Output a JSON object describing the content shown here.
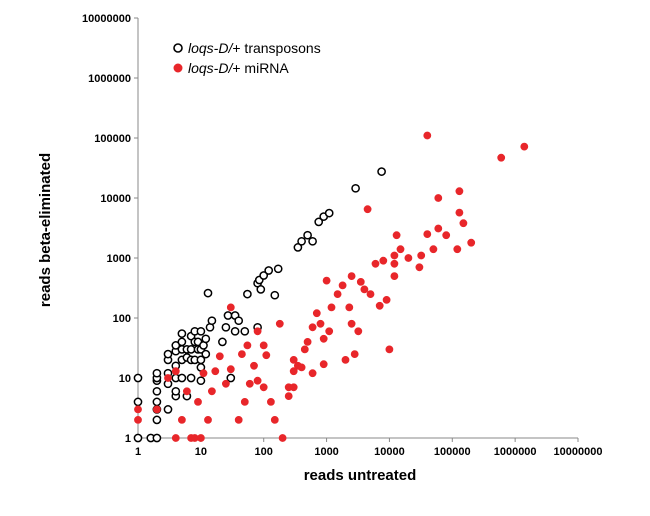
{
  "chart_data": {
    "type": "scatter",
    "xlabel": "reads untreated",
    "ylabel": "reads beta-eliminated",
    "xscale": "log",
    "yscale": "log",
    "xlim": [
      1,
      10000000
    ],
    "ylim": [
      1,
      10000000
    ],
    "xtick_labels": [
      "1",
      "10",
      "100",
      "1000",
      "10000",
      "100000",
      "1000000",
      "10000000"
    ],
    "ytick_labels": [
      "1",
      "10",
      "100",
      "1000",
      "10000",
      "100000",
      "1000000",
      "10000000"
    ],
    "grid": false,
    "legend_position": "top-left",
    "series": [
      {
        "name_italic": "loqs-D/",
        "name_rest": "+ transposons",
        "marker": "open-circle",
        "color": "#000000",
        "points": [
          [
            1,
            1
          ],
          [
            1,
            4
          ],
          [
            1,
            10
          ],
          [
            1.6,
            1
          ],
          [
            2,
            1
          ],
          [
            2,
            2
          ],
          [
            2,
            3
          ],
          [
            2,
            4
          ],
          [
            2,
            6
          ],
          [
            2,
            9
          ],
          [
            2,
            10
          ],
          [
            2,
            12
          ],
          [
            3,
            3
          ],
          [
            3,
            8
          ],
          [
            3,
            12
          ],
          [
            3,
            20
          ],
          [
            3,
            25
          ],
          [
            4,
            5
          ],
          [
            4,
            6
          ],
          [
            4,
            10
          ],
          [
            4,
            16
          ],
          [
            4,
            28
          ],
          [
            4,
            35
          ],
          [
            5,
            10
          ],
          [
            5,
            20
          ],
          [
            5,
            30
          ],
          [
            5,
            40
          ],
          [
            5,
            55
          ],
          [
            6,
            5
          ],
          [
            6,
            22
          ],
          [
            6,
            30
          ],
          [
            7,
            10
          ],
          [
            7,
            20
          ],
          [
            7,
            30
          ],
          [
            7,
            50
          ],
          [
            8,
            20
          ],
          [
            8,
            40
          ],
          [
            8,
            60
          ],
          [
            9,
            30
          ],
          [
            9,
            40
          ],
          [
            10,
            9
          ],
          [
            10,
            15
          ],
          [
            10,
            20
          ],
          [
            10,
            30
          ],
          [
            10,
            60
          ],
          [
            11,
            35
          ],
          [
            12,
            25
          ],
          [
            12,
            45
          ],
          [
            13,
            260
          ],
          [
            14,
            70
          ],
          [
            15,
            90
          ],
          [
            22,
            40
          ],
          [
            25,
            70
          ],
          [
            27,
            110
          ],
          [
            30,
            10
          ],
          [
            35,
            60
          ],
          [
            35,
            110
          ],
          [
            40,
            90
          ],
          [
            50,
            60
          ],
          [
            55,
            250
          ],
          [
            80,
            70
          ],
          [
            80,
            380
          ],
          [
            85,
            430
          ],
          [
            90,
            300
          ],
          [
            100,
            510
          ],
          [
            120,
            620
          ],
          [
            150,
            240
          ],
          [
            170,
            660
          ],
          [
            350,
            1500
          ],
          [
            400,
            1900
          ],
          [
            500,
            2400
          ],
          [
            600,
            1900
          ],
          [
            750,
            4000
          ],
          [
            900,
            4900
          ],
          [
            1100,
            5600
          ],
          [
            2900,
            14500
          ],
          [
            7500,
            27500
          ]
        ]
      },
      {
        "name_italic": "loqs-D/",
        "name_rest": "+ miRNA",
        "marker": "filled-circle",
        "color": "#e8262a",
        "points": [
          [
            1,
            2
          ],
          [
            1,
            3
          ],
          [
            2,
            3
          ],
          [
            3,
            10
          ],
          [
            4,
            1
          ],
          [
            4,
            13
          ],
          [
            5,
            2
          ],
          [
            6,
            6
          ],
          [
            7,
            1
          ],
          [
            8,
            1
          ],
          [
            9,
            4
          ],
          [
            10,
            1
          ],
          [
            11,
            12
          ],
          [
            13,
            2
          ],
          [
            15,
            6
          ],
          [
            17,
            13
          ],
          [
            20,
            23
          ],
          [
            25,
            8
          ],
          [
            30,
            150
          ],
          [
            30,
            14
          ],
          [
            40,
            2
          ],
          [
            45,
            25
          ],
          [
            50,
            4
          ],
          [
            55,
            35
          ],
          [
            60,
            8
          ],
          [
            70,
            16
          ],
          [
            80,
            9
          ],
          [
            80,
            60
          ],
          [
            100,
            7
          ],
          [
            100,
            35
          ],
          [
            110,
            24
          ],
          [
            130,
            4
          ],
          [
            150,
            2
          ],
          [
            180,
            80
          ],
          [
            200,
            1
          ],
          [
            250,
            5
          ],
          [
            250,
            7
          ],
          [
            300,
            7
          ],
          [
            300,
            13
          ],
          [
            300,
            20
          ],
          [
            350,
            16
          ],
          [
            400,
            15
          ],
          [
            450,
            30
          ],
          [
            500,
            40
          ],
          [
            600,
            12
          ],
          [
            600,
            70
          ],
          [
            700,
            120
          ],
          [
            800,
            80
          ],
          [
            900,
            45
          ],
          [
            900,
            17
          ],
          [
            1000,
            420
          ],
          [
            1100,
            60
          ],
          [
            1200,
            150
          ],
          [
            1500,
            250
          ],
          [
            1800,
            350
          ],
          [
            2000,
            20
          ],
          [
            2300,
            150
          ],
          [
            2500,
            80
          ],
          [
            2500,
            500
          ],
          [
            2800,
            25
          ],
          [
            3200,
            60
          ],
          [
            3500,
            400
          ],
          [
            4000,
            300
          ],
          [
            4500,
            6500
          ],
          [
            5000,
            250
          ],
          [
            6000,
            800
          ],
          [
            7000,
            160
          ],
          [
            8000,
            900
          ],
          [
            9000,
            200
          ],
          [
            10000,
            30
          ],
          [
            12000,
            500
          ],
          [
            12000,
            800
          ],
          [
            12000,
            1100
          ],
          [
            13000,
            2400
          ],
          [
            15000,
            1400
          ],
          [
            20000,
            1000
          ],
          [
            30000,
            700
          ],
          [
            32000,
            1100
          ],
          [
            40000,
            2500
          ],
          [
            50000,
            1400
          ],
          [
            60000,
            3100
          ],
          [
            80000,
            2400
          ],
          [
            120000,
            1400
          ],
          [
            130000,
            13000
          ],
          [
            130000,
            5700
          ],
          [
            150000,
            3800
          ],
          [
            200000,
            1800
          ],
          [
            40000,
            110000
          ],
          [
            60000,
            10000
          ],
          [
            600000,
            47000
          ],
          [
            1400000,
            72000
          ]
        ]
      }
    ]
  }
}
